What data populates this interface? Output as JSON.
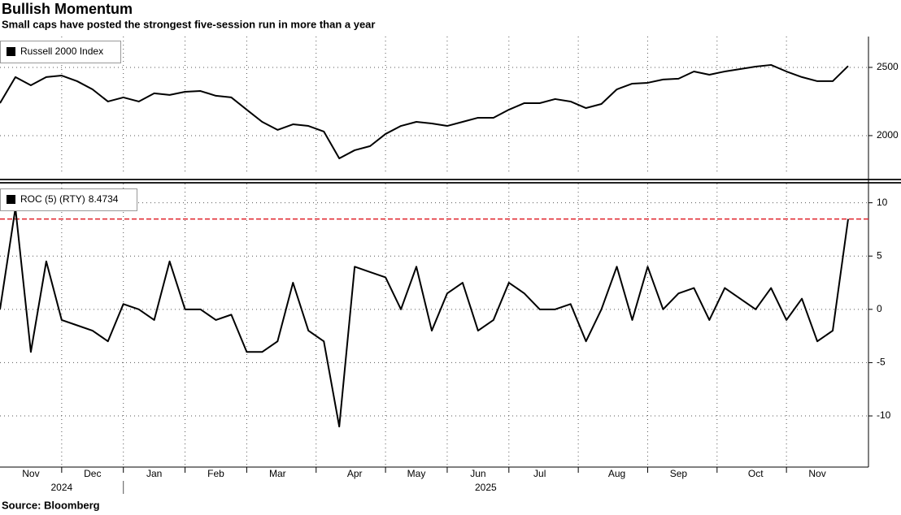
{
  "chart_data": [
    {
      "type": "line",
      "title": "Bullish Momentum",
      "subtitle": "Small caps have posted the strongest five-session run in more than a year",
      "series": [
        {
          "name": "Russell 2000 Index",
          "color": "#000000",
          "values": [
            2238,
            2429,
            2369,
            2429,
            2440,
            2399,
            2339,
            2250,
            2280,
            2250,
            2310,
            2298,
            2321,
            2327,
            2292,
            2280,
            2190,
            2101,
            2042,
            2083,
            2071,
            2030,
            1833,
            1893,
            1923,
            2012,
            2071,
            2101,
            2089,
            2071,
            2101,
            2131,
            2131,
            2190,
            2238,
            2238,
            2268,
            2250,
            2202,
            2232,
            2339,
            2381,
            2387,
            2411,
            2417,
            2470,
            2446,
            2470,
            2488,
            2506,
            2518,
            2470,
            2429,
            2399,
            2399,
            2510
          ]
        }
      ],
      "ylim": [
        1714,
        2726
      ],
      "yticks": [
        2000,
        2500
      ],
      "grid": true
    },
    {
      "type": "line",
      "categories": [
        null,
        null,
        "Nov",
        null,
        null,
        null,
        "Dec",
        null,
        null,
        null,
        "Jan",
        null,
        null,
        null,
        "Feb",
        null,
        null,
        null,
        "Mar",
        null,
        null,
        null,
        null,
        "Apr",
        null,
        null,
        null,
        "May",
        null,
        null,
        null,
        "Jun",
        null,
        null,
        null,
        "Jul",
        null,
        null,
        null,
        null,
        "Aug",
        null,
        null,
        null,
        "Sep",
        null,
        null,
        null,
        null,
        "Oct",
        null,
        null,
        null,
        "Nov",
        null,
        null
      ],
      "years": [
        "2024",
        "2025"
      ],
      "series": [
        {
          "name": "ROC (5) (RTY)",
          "color": "#000000",
          "values": [
            0,
            9.5,
            -4,
            4.5,
            -1,
            -1.5,
            -2,
            -3,
            0.5,
            0,
            -1,
            4.5,
            0,
            0,
            -1,
            -0.5,
            -4,
            -4,
            -3,
            2.5,
            -2,
            -3,
            -11,
            4,
            3.5,
            3,
            0,
            4,
            -2,
            1.5,
            2.5,
            -2,
            -1,
            2.5,
            1.5,
            0,
            0,
            0.5,
            -3,
            0,
            4,
            -1,
            4,
            0,
            1.5,
            2,
            -1,
            2,
            1,
            0,
            2,
            -1,
            1,
            -3,
            -2,
            8.4734
          ]
        }
      ],
      "current_value": 8.4734,
      "current_color": "#e0202a",
      "ylim": [
        -14.8,
        11.8
      ],
      "yticks": [
        -10,
        -5,
        0,
        5,
        10
      ],
      "grid": true
    }
  ],
  "source": "Source: Bloomberg"
}
